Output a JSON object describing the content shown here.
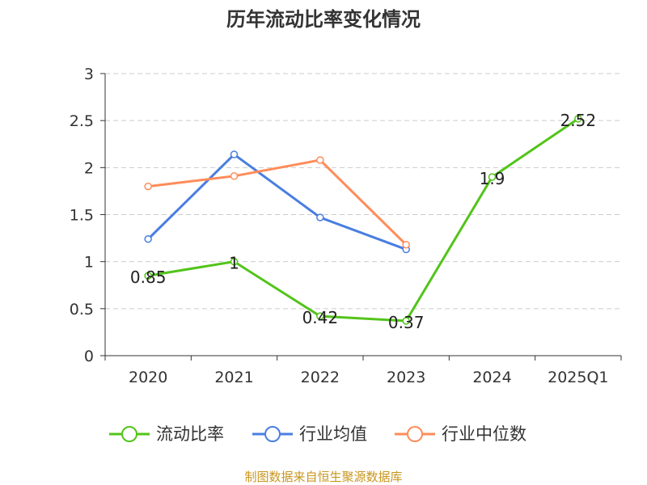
{
  "chart_data": {
    "type": "line",
    "title": "历年流动比率变化情况",
    "categories": [
      "2020",
      "2021",
      "2022",
      "2023",
      "2024",
      "2025Q1"
    ],
    "ylim": [
      0,
      3
    ],
    "yticks": [
      "0",
      "0.5",
      "1",
      "1.5",
      "2",
      "2.5",
      "3"
    ],
    "grid": true,
    "legend_position": "bottom",
    "series": [
      {
        "name": "流动比率",
        "color": "#52c41a",
        "values": [
          0.85,
          1,
          0.42,
          0.37,
          1.9,
          2.52
        ],
        "labels": [
          "0.85",
          "1",
          "0.42",
          "0.37",
          "1.9",
          "2.52"
        ]
      },
      {
        "name": "行业均值",
        "color": "#4a7ee0",
        "values": [
          1.24,
          2.14,
          1.47,
          1.13,
          null,
          null
        ]
      },
      {
        "name": "行业中位数",
        "color": "#ff8c5a",
        "values": [
          1.8,
          1.91,
          2.08,
          1.18,
          null,
          null
        ]
      }
    ]
  },
  "source": "制图数据来自恒生聚源数据库",
  "source_color": "#c8961e"
}
